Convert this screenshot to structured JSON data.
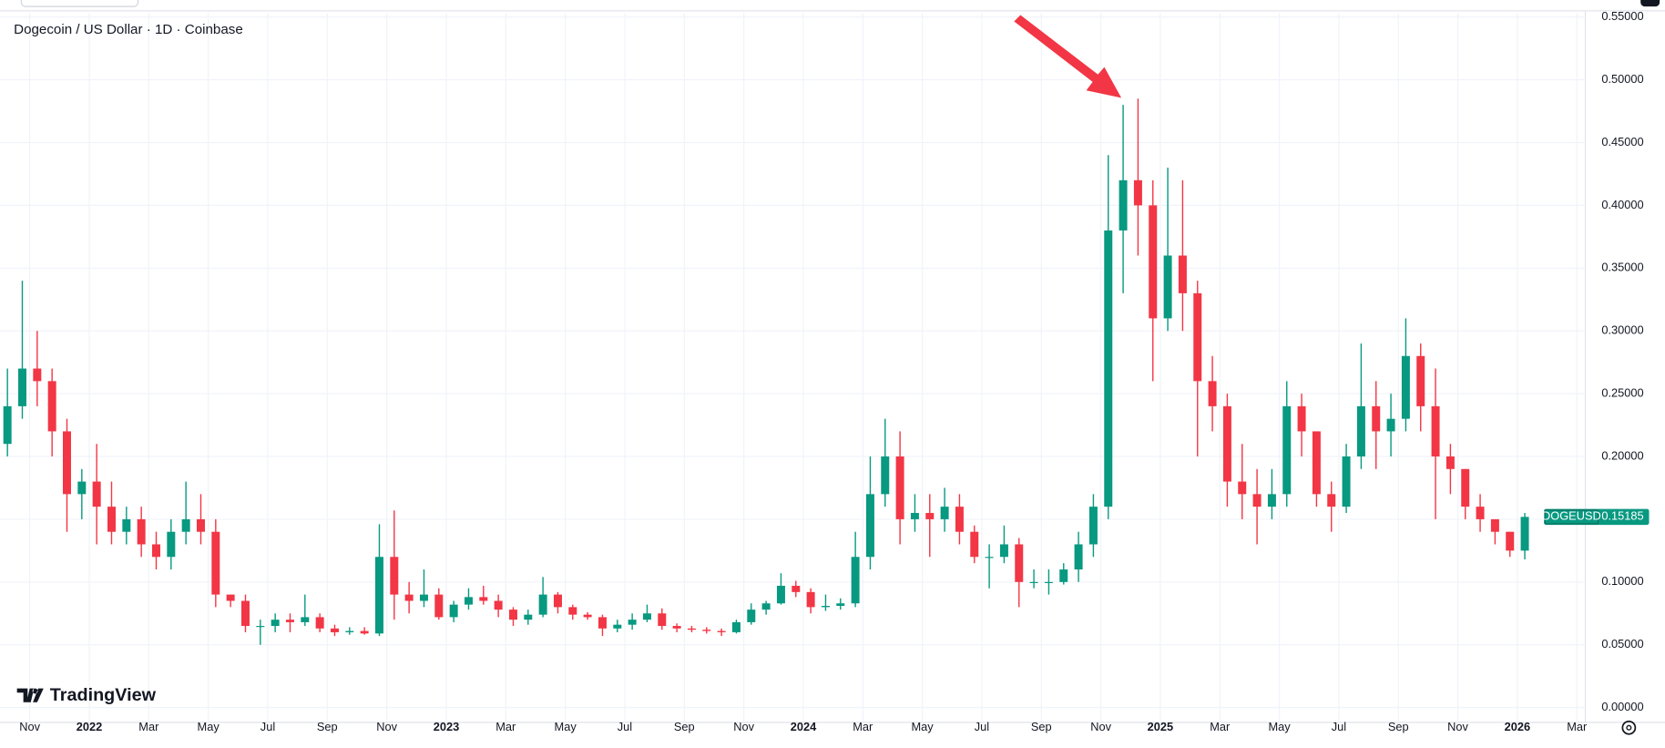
{
  "chart_data": {
    "type": "candlestick",
    "title": "Dogecoin / US Dollar · 1D · Coinbase",
    "logo": "TradingView",
    "up_color": "#089981",
    "down_color": "#f23645",
    "grid": true,
    "last_price": {
      "label": "DOGEUSD",
      "value": 0.15185
    },
    "xlim": [
      0,
      106.5
    ],
    "xticks": [
      {
        "value": 2,
        "label": "Nov"
      },
      {
        "value": 6,
        "label": "2022"
      },
      {
        "value": 10,
        "label": "Mar"
      },
      {
        "value": 14,
        "label": "May"
      },
      {
        "value": 18,
        "label": "Jul"
      },
      {
        "value": 22,
        "label": "Sep"
      },
      {
        "value": 26,
        "label": "Nov"
      },
      {
        "value": 30,
        "label": "2023"
      },
      {
        "value": 34,
        "label": "Mar"
      },
      {
        "value": 38,
        "label": "May"
      },
      {
        "value": 42,
        "label": "Jul"
      },
      {
        "value": 46,
        "label": "Sep"
      },
      {
        "value": 50,
        "label": "Nov"
      },
      {
        "value": 54,
        "label": "2024"
      },
      {
        "value": 58,
        "label": "Mar"
      },
      {
        "value": 62,
        "label": "May"
      },
      {
        "value": 66,
        "label": "Jul"
      },
      {
        "value": 70,
        "label": "Sep"
      },
      {
        "value": 74,
        "label": "Nov"
      },
      {
        "value": 78,
        "label": "2025"
      },
      {
        "value": 82,
        "label": "Mar"
      },
      {
        "value": 86,
        "label": "May"
      },
      {
        "value": 90,
        "label": "Jul"
      },
      {
        "value": 94,
        "label": "Sep"
      },
      {
        "value": 98,
        "label": "Nov"
      },
      {
        "value": 102,
        "label": "2026"
      },
      {
        "value": 106,
        "label": "Mar"
      }
    ],
    "ylim": [
      -0.0118,
      0.5533
    ],
    "yticks": [
      {
        "value": 0,
        "label": "0.00000"
      },
      {
        "value": 0.05,
        "label": "0.05000"
      },
      {
        "value": 0.1,
        "label": "0.10000"
      },
      {
        "value": 0.15,
        "label": "0.15000"
      },
      {
        "value": 0.2,
        "label": "0.20000"
      },
      {
        "value": 0.25,
        "label": "0.25000"
      },
      {
        "value": 0.3,
        "label": "0.30000"
      },
      {
        "value": 0.35,
        "label": "0.35000"
      },
      {
        "value": 0.4,
        "label": "0.40000"
      },
      {
        "value": 0.45,
        "label": "0.45000"
      },
      {
        "value": 0.5,
        "label": "0.50000"
      },
      {
        "value": 0.55,
        "label": "0.55000"
      }
    ],
    "open": [
      0.21,
      0.24,
      0.27,
      0.26,
      0.22,
      0.17,
      0.18,
      0.16,
      0.14,
      0.15,
      0.13,
      0.12,
      0.14,
      0.15,
      0.14,
      0.09,
      0.085,
      0.065,
      0.065,
      0.07,
      0.068,
      0.072,
      0.063,
      0.06,
      0.061,
      0.059,
      0.12,
      0.09,
      0.085,
      0.09,
      0.072,
      0.082,
      0.088,
      0.085,
      0.078,
      0.07,
      0.074,
      0.09,
      0.08,
      0.074,
      0.072,
      0.063,
      0.066,
      0.07,
      0.075,
      0.065,
      0.063,
      0.062,
      0.061,
      0.06,
      0.068,
      0.078,
      0.083,
      0.097,
      0.092,
      0.08,
      0.081,
      0.083,
      0.12,
      0.17,
      0.2,
      0.15,
      0.155,
      0.15,
      0.16,
      0.14,
      0.12,
      0.12,
      0.13,
      0.1,
      0.1,
      0.1,
      0.11,
      0.13,
      0.16,
      0.38,
      0.42,
      0.4,
      0.31,
      0.36,
      0.33,
      0.26,
      0.24,
      0.18,
      0.17,
      0.16,
      0.17,
      0.24,
      0.22,
      0.17,
      0.16,
      0.2,
      0.24,
      0.22,
      0.23,
      0.28,
      0.24,
      0.2,
      0.19,
      0.16,
      0.15,
      0.14,
      0.125
    ],
    "high": [
      0.27,
      0.34,
      0.3,
      0.27,
      0.23,
      0.19,
      0.21,
      0.18,
      0.16,
      0.16,
      0.14,
      0.15,
      0.18,
      0.17,
      0.15,
      0.09,
      0.09,
      0.07,
      0.075,
      0.075,
      0.09,
      0.075,
      0.066,
      0.064,
      0.064,
      0.146,
      0.157,
      0.1,
      0.11,
      0.095,
      0.085,
      0.095,
      0.097,
      0.09,
      0.08,
      0.078,
      0.104,
      0.092,
      0.082,
      0.076,
      0.074,
      0.07,
      0.075,
      0.082,
      0.079,
      0.067,
      0.065,
      0.064,
      0.063,
      0.07,
      0.083,
      0.085,
      0.107,
      0.101,
      0.095,
      0.09,
      0.087,
      0.14,
      0.2,
      0.23,
      0.22,
      0.17,
      0.17,
      0.175,
      0.17,
      0.145,
      0.13,
      0.145,
      0.135,
      0.11,
      0.11,
      0.115,
      0.14,
      0.17,
      0.44,
      0.48,
      0.485,
      0.42,
      0.43,
      0.42,
      0.34,
      0.28,
      0.25,
      0.21,
      0.19,
      0.19,
      0.26,
      0.25,
      0.22,
      0.18,
      0.21,
      0.29,
      0.26,
      0.25,
      0.31,
      0.29,
      0.27,
      0.21,
      0.19,
      0.17,
      0.15,
      0.14,
      0.155
    ],
    "low": [
      0.2,
      0.23,
      0.24,
      0.2,
      0.14,
      0.15,
      0.13,
      0.13,
      0.13,
      0.12,
      0.11,
      0.11,
      0.13,
      0.13,
      0.08,
      0.08,
      0.06,
      0.05,
      0.06,
      0.06,
      0.065,
      0.06,
      0.057,
      0.058,
      0.058,
      0.057,
      0.07,
      0.075,
      0.08,
      0.07,
      0.068,
      0.078,
      0.082,
      0.072,
      0.065,
      0.066,
      0.072,
      0.075,
      0.07,
      0.07,
      0.057,
      0.06,
      0.062,
      0.068,
      0.062,
      0.06,
      0.06,
      0.059,
      0.057,
      0.059,
      0.066,
      0.074,
      0.082,
      0.088,
      0.075,
      0.077,
      0.078,
      0.08,
      0.11,
      0.16,
      0.13,
      0.14,
      0.12,
      0.14,
      0.13,
      0.115,
      0.095,
      0.115,
      0.08,
      0.095,
      0.09,
      0.098,
      0.1,
      0.12,
      0.15,
      0.33,
      0.36,
      0.26,
      0.3,
      0.3,
      0.2,
      0.22,
      0.16,
      0.15,
      0.13,
      0.15,
      0.16,
      0.2,
      0.16,
      0.14,
      0.155,
      0.19,
      0.19,
      0.2,
      0.22,
      0.22,
      0.15,
      0.17,
      0.15,
      0.14,
      0.13,
      0.12,
      0.118
    ],
    "close": [
      0.24,
      0.27,
      0.26,
      0.22,
      0.17,
      0.18,
      0.16,
      0.14,
      0.15,
      0.13,
      0.12,
      0.14,
      0.15,
      0.14,
      0.09,
      0.085,
      0.065,
      0.065,
      0.07,
      0.068,
      0.072,
      0.063,
      0.06,
      0.061,
      0.059,
      0.12,
      0.09,
      0.085,
      0.09,
      0.072,
      0.082,
      0.088,
      0.085,
      0.078,
      0.07,
      0.074,
      0.09,
      0.08,
      0.074,
      0.072,
      0.063,
      0.066,
      0.07,
      0.075,
      0.065,
      0.063,
      0.062,
      0.061,
      0.06,
      0.068,
      0.078,
      0.083,
      0.097,
      0.092,
      0.08,
      0.081,
      0.083,
      0.12,
      0.17,
      0.2,
      0.15,
      0.155,
      0.15,
      0.16,
      0.14,
      0.12,
      0.12,
      0.13,
      0.1,
      0.1,
      0.1,
      0.11,
      0.13,
      0.16,
      0.38,
      0.42,
      0.4,
      0.31,
      0.36,
      0.33,
      0.26,
      0.24,
      0.18,
      0.17,
      0.16,
      0.17,
      0.24,
      0.22,
      0.17,
      0.16,
      0.2,
      0.24,
      0.22,
      0.23,
      0.28,
      0.24,
      0.2,
      0.19,
      0.16,
      0.15,
      0.14,
      0.125,
      0.15185
    ]
  }
}
